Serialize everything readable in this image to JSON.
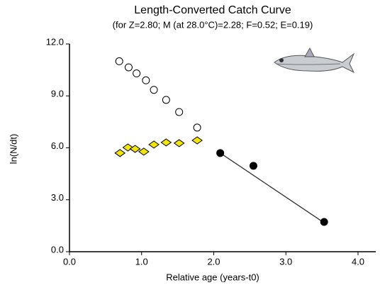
{
  "chart_data": {
    "type": "scatter",
    "title": "Length-Converted Catch Curve",
    "subtitle": "(for Z=2.80; M (at 28.0°C)=2.28; F=0.52; E=0.19)",
    "xlabel": "Relative age (years-t0)",
    "ylabel": "ln(N/dt)",
    "xlim": [
      0,
      4.2
    ],
    "ylim": [
      0,
      12
    ],
    "xticks": [
      {
        "value": 0,
        "label": "0.0"
      },
      {
        "value": 1,
        "label": "1.0"
      },
      {
        "value": 2,
        "label": "2.0"
      },
      {
        "value": 3,
        "label": "3.0"
      },
      {
        "value": 4,
        "label": "4.0"
      }
    ],
    "yticks": [
      {
        "value": 0,
        "label": "0.0"
      },
      {
        "value": 3,
        "label": "3.0"
      },
      {
        "value": 6,
        "label": "6.0"
      },
      {
        "value": 9,
        "label": "9.0"
      },
      {
        "value": 12,
        "label": "12.0"
      }
    ],
    "series": [
      {
        "marker": "circle-open",
        "color": "#ffffff",
        "x": [
          0.69,
          0.82,
          0.93,
          1.06,
          1.17,
          1.34,
          1.52,
          1.77
        ],
        "values": [
          11.0,
          10.65,
          10.3,
          9.9,
          9.35,
          8.77,
          8.07,
          7.17
        ]
      },
      {
        "marker": "diamond",
        "color": "#f2e600",
        "x": [
          0.7,
          0.81,
          0.91,
          1.03,
          1.17,
          1.34,
          1.52,
          1.77
        ],
        "values": [
          5.7,
          6.02,
          5.94,
          5.78,
          6.19,
          6.31,
          6.27,
          6.43
        ]
      },
      {
        "marker": "circle",
        "color": "#000000",
        "x": [
          2.09,
          2.55,
          3.53
        ],
        "values": [
          5.7,
          4.96,
          1.72
        ]
      }
    ],
    "fit_line": {
      "color": "#333333",
      "x": [
        2.09,
        3.53
      ],
      "values": [
        5.7,
        1.67
      ]
    }
  }
}
